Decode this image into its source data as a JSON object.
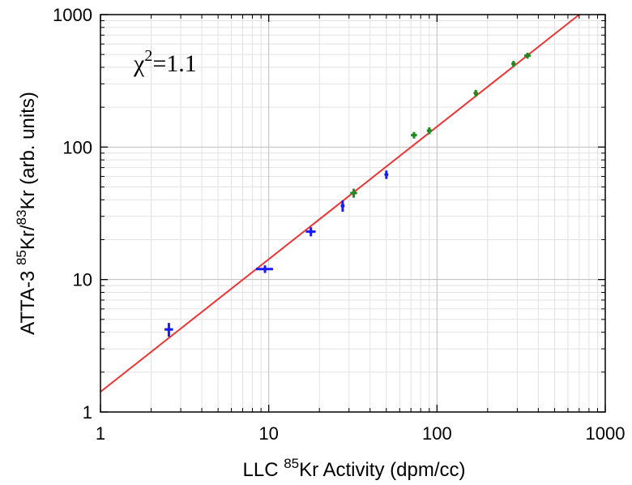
{
  "chart_data": {
    "type": "scatter",
    "xscale": "log",
    "yscale": "log",
    "xlim": [
      1,
      1000
    ],
    "ylim": [
      1,
      1000
    ],
    "grid": true,
    "x_ticks": [
      "1",
      "10",
      "100",
      "1000"
    ],
    "y_ticks": [
      "1",
      "10",
      "100",
      "1000"
    ],
    "xlabel": {
      "pre": "LLC ",
      "sup": "85",
      "post": "Kr Activity (dpm/cc)"
    },
    "ylabel": {
      "pre": "ATTA-3 ",
      "sup1": "85",
      "mid": "Kr/",
      "sup2": "83",
      "post": "Kr (arb. units)"
    },
    "annotation": {
      "pre": "χ",
      "sup": "2",
      "post": "=1.1"
    },
    "series": [
      {
        "color": "#1a1aff",
        "points": [
          {
            "x": 2.55,
            "y": 4.2,
            "xerr": 0.15,
            "yerr": 0.5
          },
          {
            "x": 9.5,
            "y": 12.0,
            "xerr": 1.1,
            "yerr": 0.8
          },
          {
            "x": 17.8,
            "y": 23.0,
            "xerr": 1.2,
            "yerr": 1.8
          },
          {
            "x": 27.5,
            "y": 36.0,
            "xerr": 0.4,
            "yerr": 3.5
          },
          {
            "x": 50.0,
            "y": 62.0,
            "xerr": 0.4,
            "yerr": 4.5
          }
        ]
      },
      {
        "color": "#1f8a1f",
        "points": [
          {
            "x": 32.0,
            "y": 45.0,
            "xerr": 1.5,
            "yerr": 3.5
          },
          {
            "x": 73.0,
            "y": 123.0,
            "xerr": 3.0,
            "yerr": 7.0
          },
          {
            "x": 90.0,
            "y": 133.0,
            "xerr": 3.0,
            "yerr": 8.0
          },
          {
            "x": 170.0,
            "y": 255.0,
            "xerr": 5.0,
            "yerr": 15.0
          },
          {
            "x": 285.0,
            "y": 425.0,
            "xerr": 8.0,
            "yerr": 22.0
          },
          {
            "x": 345.0,
            "y": 490.0,
            "xerr": 15.0,
            "yerr": 25.0
          }
        ]
      }
    ],
    "fit_line": {
      "color": "#ee3333",
      "x": [
        1,
        700
      ],
      "y": [
        1.42,
        1000
      ]
    }
  }
}
